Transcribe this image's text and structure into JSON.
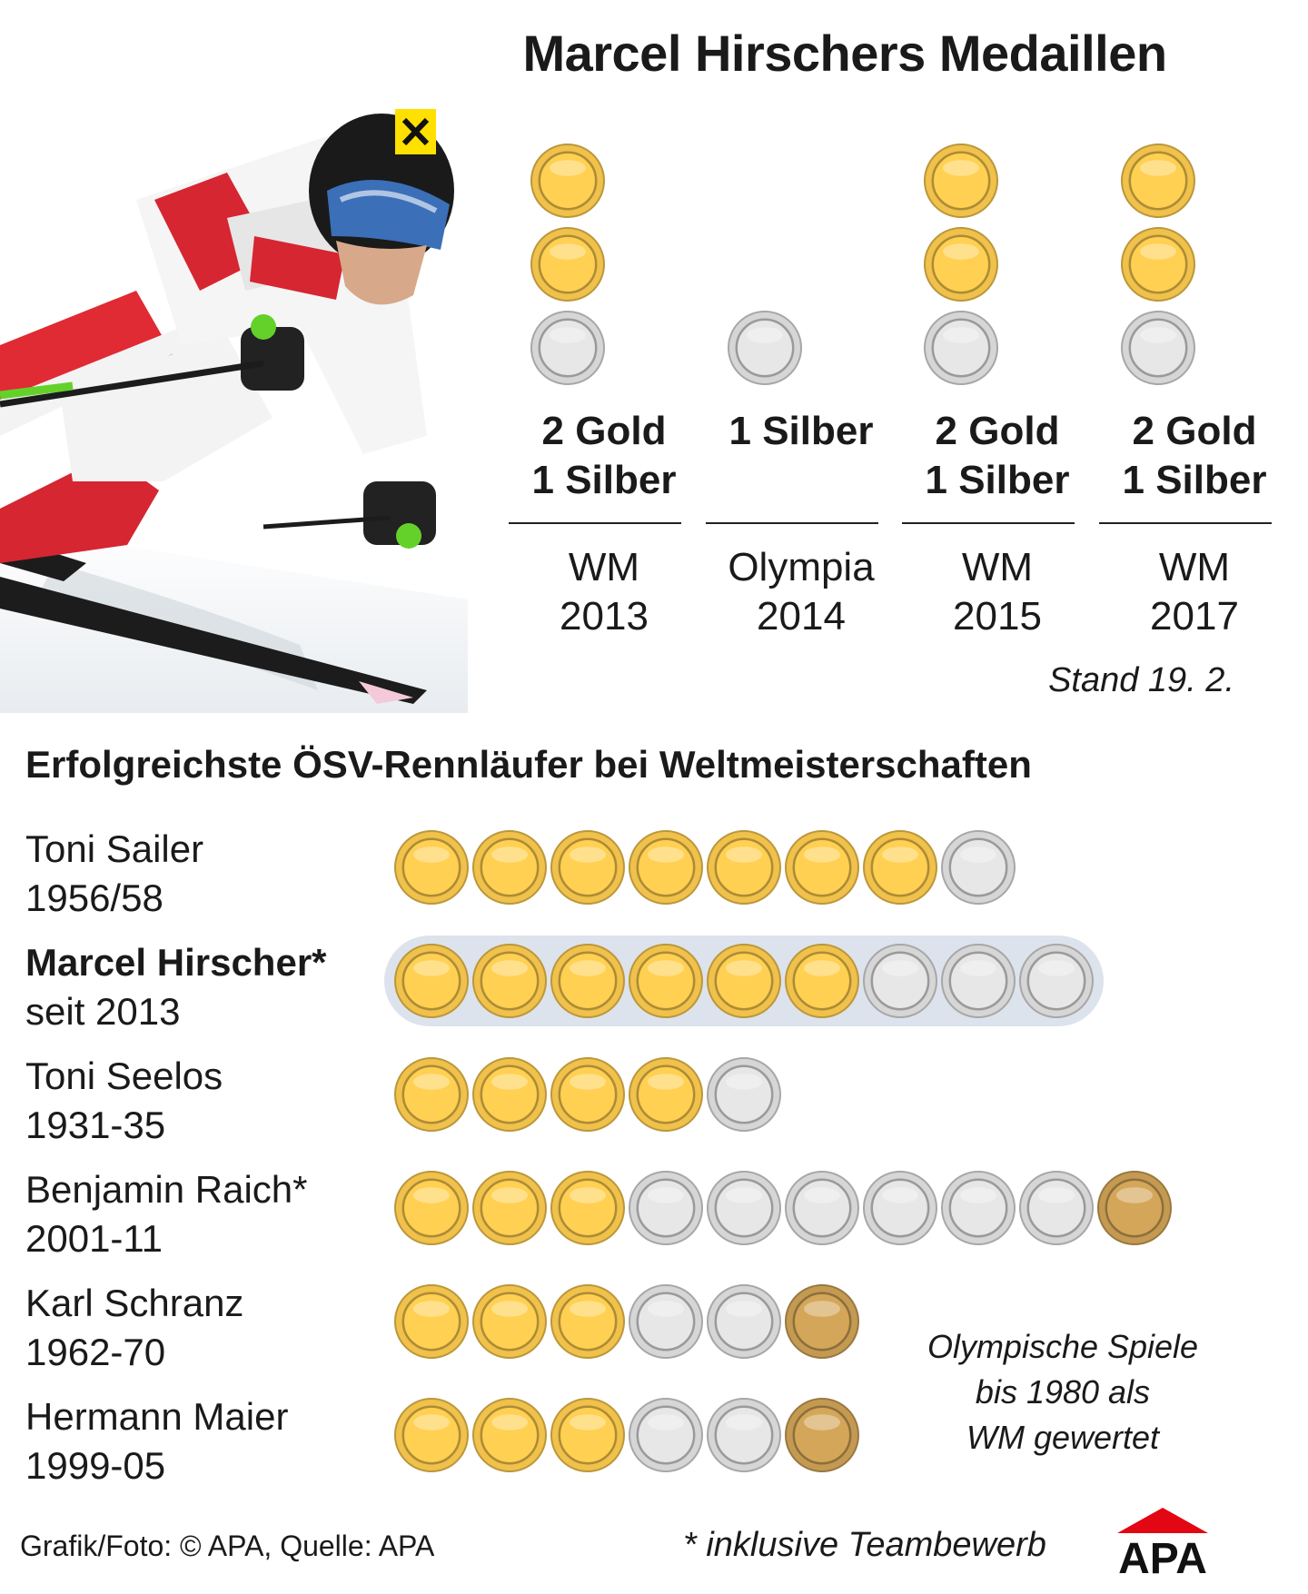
{
  "header": {
    "title": "Marcel Hirschers Medaillen",
    "stand": "Stand 19. 2."
  },
  "photo": {
    "icon": "skier-photo"
  },
  "colors": {
    "gold": "#f0c14b",
    "silver": "#d6d6d6",
    "bronze": "#c49a52",
    "highlight": "#dde3ec"
  },
  "chart_data": [
    {
      "type": "table",
      "title": "Marcel Hirschers Medaillen",
      "columns": [
        {
          "summary_line1": "2 Gold",
          "summary_line2": "1 Silber",
          "event": "WM",
          "year": "2013",
          "gold": 2,
          "silver": 1,
          "bronze": 0
        },
        {
          "summary_line1": "1 Silber",
          "summary_line2": "",
          "event": "Olympia",
          "year": "2014",
          "gold": 0,
          "silver": 1,
          "bronze": 0
        },
        {
          "summary_line1": "2 Gold",
          "summary_line2": "1 Silber",
          "event": "WM",
          "year": "2015",
          "gold": 2,
          "silver": 1,
          "bronze": 0
        },
        {
          "summary_line1": "2 Gold",
          "summary_line2": "1 Silber",
          "event": "WM",
          "year": "2017",
          "gold": 2,
          "silver": 1,
          "bronze": 0
        }
      ]
    },
    {
      "type": "table",
      "title": "Erfolgreichste ÖSV-Rennläufer bei Weltmeisterschaften",
      "rows": [
        {
          "name": "Toni Sailer",
          "period": "1956/58",
          "gold": 7,
          "silver": 1,
          "bronze": 0,
          "highlight": false
        },
        {
          "name": "Marcel Hirscher*",
          "period": "seit 2013",
          "gold": 6,
          "silver": 3,
          "bronze": 0,
          "highlight": true
        },
        {
          "name": "Toni Seelos",
          "period": "1931-35",
          "gold": 4,
          "silver": 1,
          "bronze": 0,
          "highlight": false
        },
        {
          "name": "Benjamin Raich*",
          "period": "2001-11",
          "gold": 3,
          "silver": 6,
          "bronze": 1,
          "highlight": false
        },
        {
          "name": "Karl Schranz",
          "period": "1962-70",
          "gold": 3,
          "silver": 2,
          "bronze": 1,
          "highlight": false
        },
        {
          "name": "Hermann Maier",
          "period": "1999-05",
          "gold": 3,
          "silver": 2,
          "bronze": 1,
          "highlight": false
        }
      ]
    }
  ],
  "notes": {
    "olympic_line1": "Olympische Spiele",
    "olympic_line2": "bis 1980 als",
    "olympic_line3": "WM gewertet",
    "team": "* inklusive Teambewerb",
    "source": "Grafik/Foto: © APA, Quelle: APA",
    "logo": "APA"
  }
}
